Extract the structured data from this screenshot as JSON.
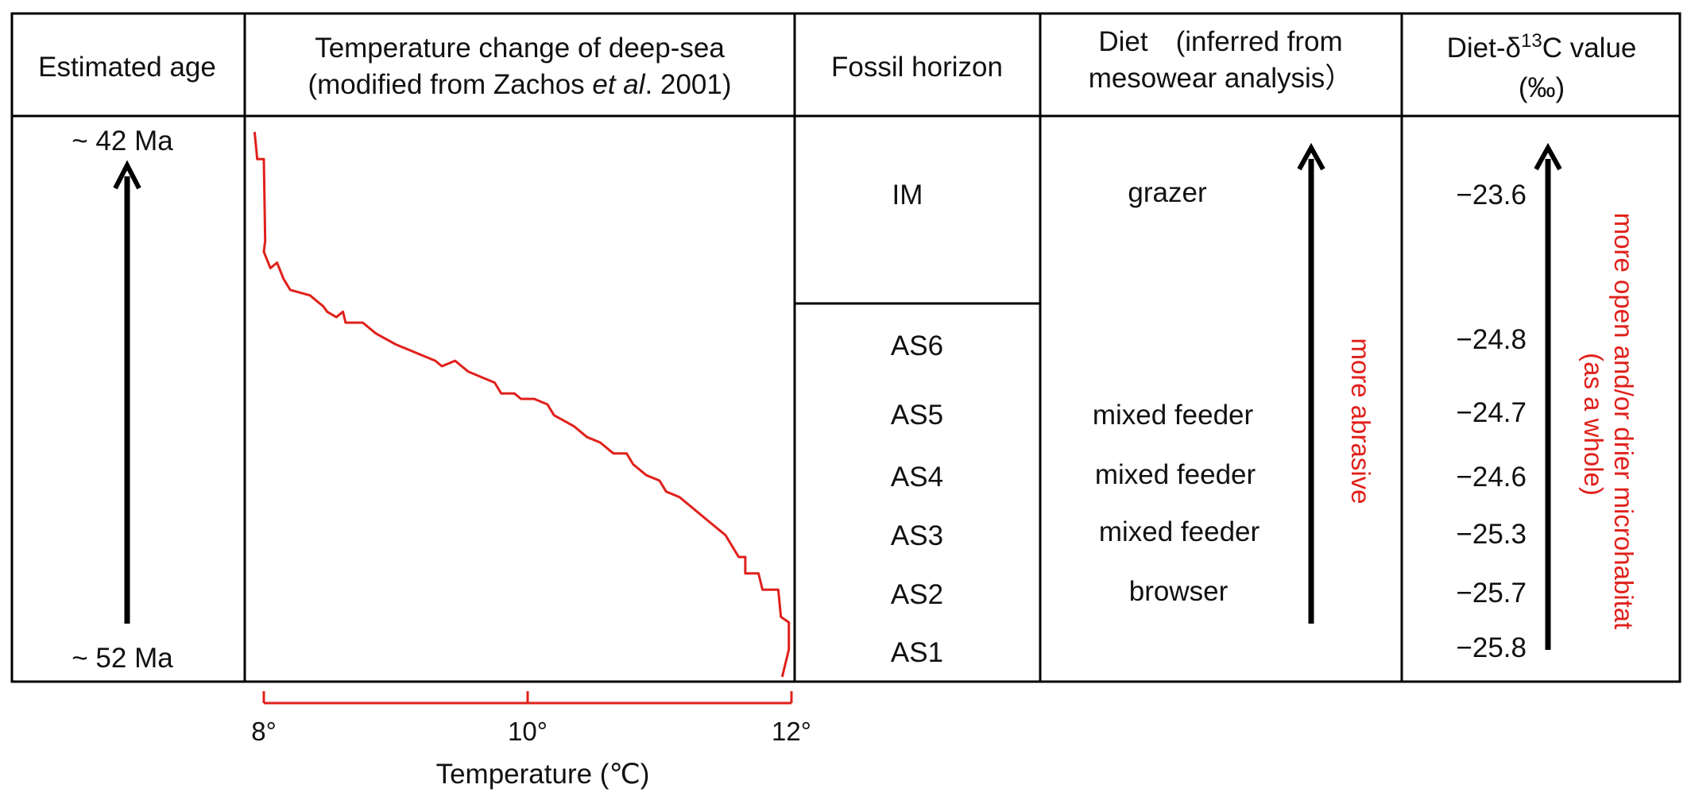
{
  "headers": {
    "age": "Estimated age",
    "temp_line1": "Temperature change of deep-sea",
    "temp_line2_pre": "(modified from Zachos ",
    "temp_line2_etal": "et al",
    "temp_line2_post": ". 2001)",
    "fossil": "Fossil horizon",
    "diet_line1": "Diet　(inferred from",
    "diet_line2": "mesowear analysis）",
    "d13c_line1_pre": "Diet-δ",
    "d13c_sup": "13",
    "d13c_line1_post": "C value",
    "d13c_line2": "(‰)"
  },
  "age": {
    "top": "~ 42 Ma",
    "bottom": "~ 52 Ma"
  },
  "horizons": [
    {
      "name": "IM",
      "diet": "grazer",
      "d13c": "−23.6"
    },
    {
      "name": "AS6",
      "diet": "",
      "d13c": "−24.8"
    },
    {
      "name": "AS5",
      "diet": "mixed feeder",
      "d13c": "−24.7"
    },
    {
      "name": "AS4",
      "diet": "mixed feeder",
      "d13c": "−24.6"
    },
    {
      "name": "AS3",
      "diet": "mixed feeder",
      "d13c": "−25.3"
    },
    {
      "name": "AS2",
      "diet": "browser",
      "d13c": "−25.7"
    },
    {
      "name": "AS1",
      "diet": "",
      "d13c": "−25.8"
    }
  ],
  "annotations": {
    "diet_arrow": "more  abrasive",
    "d13c_arrow_line1": "more  open and/or drier microhabitat",
    "d13c_arrow_line2": "(as a whole)"
  },
  "temperature_axis": {
    "label": "Temperature (℃)",
    "ticks": [
      "8°",
      "10°",
      "12°"
    ],
    "tick_values": [
      8,
      10,
      12
    ]
  },
  "colors": {
    "line": "#000000",
    "curve": "#e0201b",
    "annotation": "#e0201b"
  },
  "temperature_curve": {
    "note": "age fraction 0 = ~42 Ma (top), 1 = ~52 Ma (bottom)",
    "points": [
      [
        7.93,
        0.0
      ],
      [
        7.95,
        0.05
      ],
      [
        8.0,
        0.05
      ],
      [
        8.01,
        0.2
      ],
      [
        8.0,
        0.22
      ],
      [
        8.05,
        0.25
      ],
      [
        8.1,
        0.24
      ],
      [
        8.15,
        0.27
      ],
      [
        8.2,
        0.29
      ],
      [
        8.35,
        0.3
      ],
      [
        8.4,
        0.31
      ],
      [
        8.45,
        0.32
      ],
      [
        8.48,
        0.33
      ],
      [
        8.55,
        0.34
      ],
      [
        8.6,
        0.33
      ],
      [
        8.62,
        0.35
      ],
      [
        8.75,
        0.35
      ],
      [
        8.85,
        0.37
      ],
      [
        9.0,
        0.39
      ],
      [
        9.1,
        0.4
      ],
      [
        9.2,
        0.41
      ],
      [
        9.3,
        0.42
      ],
      [
        9.35,
        0.43
      ],
      [
        9.45,
        0.42
      ],
      [
        9.55,
        0.44
      ],
      [
        9.65,
        0.45
      ],
      [
        9.75,
        0.46
      ],
      [
        9.8,
        0.48
      ],
      [
        9.9,
        0.48
      ],
      [
        9.95,
        0.49
      ],
      [
        10.05,
        0.49
      ],
      [
        10.15,
        0.5
      ],
      [
        10.2,
        0.52
      ],
      [
        10.35,
        0.54
      ],
      [
        10.45,
        0.56
      ],
      [
        10.55,
        0.57
      ],
      [
        10.65,
        0.59
      ],
      [
        10.75,
        0.59
      ],
      [
        10.8,
        0.61
      ],
      [
        10.9,
        0.63
      ],
      [
        11.0,
        0.64
      ],
      [
        11.05,
        0.66
      ],
      [
        11.15,
        0.67
      ],
      [
        11.25,
        0.69
      ],
      [
        11.35,
        0.71
      ],
      [
        11.45,
        0.73
      ],
      [
        11.5,
        0.74
      ],
      [
        11.55,
        0.76
      ],
      [
        11.6,
        0.78
      ],
      [
        11.65,
        0.78
      ],
      [
        11.65,
        0.81
      ],
      [
        11.75,
        0.81
      ],
      [
        11.78,
        0.84
      ],
      [
        11.9,
        0.84
      ],
      [
        11.92,
        0.89
      ],
      [
        11.98,
        0.9
      ],
      [
        11.98,
        0.95
      ],
      [
        11.94,
        0.99
      ],
      [
        11.93,
        1.0
      ]
    ]
  }
}
